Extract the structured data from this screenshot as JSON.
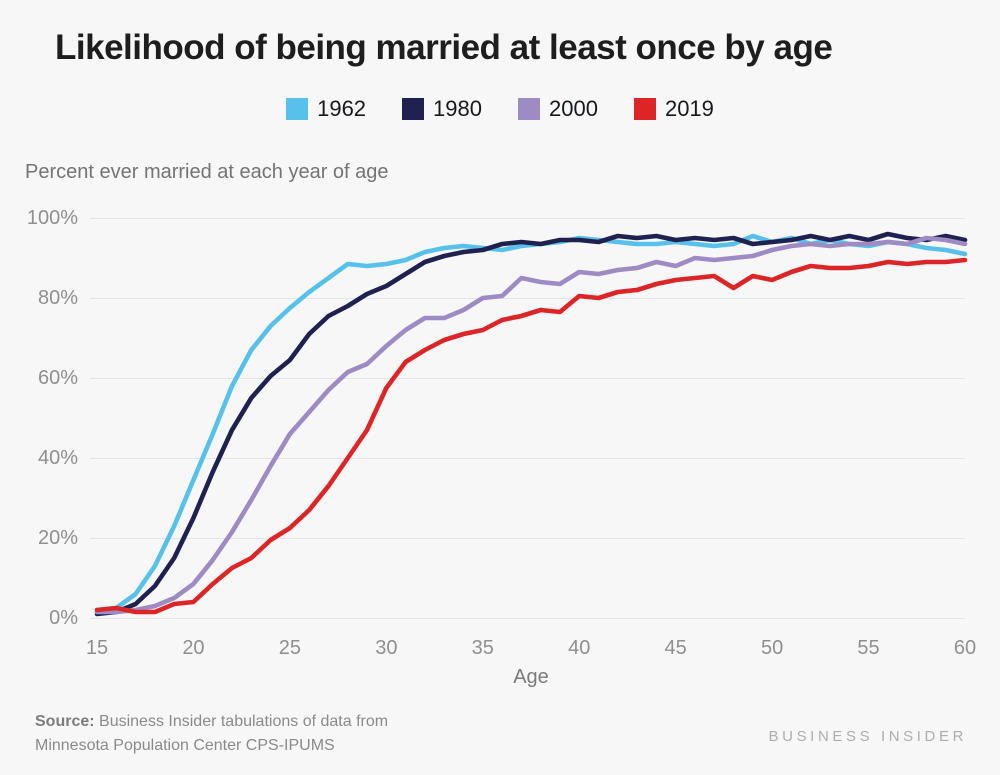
{
  "title": "Likelihood of being married at least once by age",
  "subtitle": "Percent ever married at each year of age",
  "source": {
    "label": "Source:",
    "line1_rest": " Business Insider tabulations of data from",
    "line2": "Minnesota Population Center CPS-IPUMS"
  },
  "branding": "BUSINESS INSIDER",
  "colors": {
    "background": "#f7f7f7",
    "gridline": "#e4e4e4",
    "title_text": "#1e1e1e",
    "muted_text": "#8f8f8f"
  },
  "chart_data": {
    "type": "line",
    "title": "Likelihood of being married at least once by age",
    "subtitle": "Percent ever married at each year of age",
    "xlabel": "Age",
    "ylabel": "Percent ever married",
    "xlim": [
      15,
      60
    ],
    "ylim": [
      0,
      100
    ],
    "grid": true,
    "legend_position": "top",
    "xticks": [
      "15",
      "20",
      "25",
      "30",
      "35",
      "40",
      "45",
      "50",
      "55",
      "60"
    ],
    "yticks": [
      "0%",
      "20%",
      "40%",
      "60%",
      "80%",
      "100%"
    ],
    "x": [
      15,
      16,
      17,
      18,
      19,
      20,
      21,
      22,
      23,
      24,
      25,
      26,
      27,
      28,
      29,
      30,
      31,
      32,
      33,
      34,
      35,
      36,
      37,
      38,
      39,
      40,
      41,
      42,
      43,
      44,
      45,
      46,
      47,
      48,
      49,
      50,
      51,
      52,
      53,
      54,
      55,
      56,
      57,
      58,
      59,
      60
    ],
    "series": [
      {
        "name": "1962",
        "color": "#57C1EB",
        "values": [
          2,
          2.5,
          6,
          13,
          23,
          34.5,
          46,
          58,
          67,
          73,
          77.5,
          81.5,
          85,
          88.5,
          88,
          88.5,
          89.5,
          91.5,
          92.5,
          93,
          92.5,
          92,
          93,
          93.5,
          94,
          95,
          94.5,
          94,
          93.5,
          93.5,
          94,
          93.5,
          93,
          93.5,
          95.5,
          94,
          95,
          93.5,
          94.5,
          93.5,
          93,
          94,
          93.5,
          92.5,
          92,
          91
        ]
      },
      {
        "name": "1980",
        "color": "#1F2251",
        "values": [
          1,
          1.5,
          3.5,
          8,
          15,
          25,
          36.5,
          47,
          55,
          60.5,
          64.5,
          71,
          75.5,
          78,
          81,
          83,
          86,
          89,
          90.5,
          91.5,
          92,
          93.5,
          94,
          93.5,
          94.5,
          94.5,
          94,
          95.5,
          95,
          95.5,
          94.5,
          95,
          94.5,
          95,
          93.5,
          94,
          94.5,
          95.5,
          94.5,
          95.5,
          94.5,
          96,
          95,
          94.5,
          95.5,
          94.5
        ]
      },
      {
        "name": "2000",
        "color": "#9E8BC4",
        "values": [
          1.5,
          1.5,
          2,
          3,
          5,
          8.5,
          14.5,
          21.5,
          29.5,
          38,
          46,
          51.5,
          57,
          61.5,
          63.5,
          68,
          72,
          75,
          75,
          77,
          80,
          80.5,
          85,
          84,
          83.5,
          86.5,
          86,
          87,
          87.5,
          89,
          88,
          90,
          89.5,
          90,
          90.5,
          92,
          93,
          93.5,
          93,
          93.5,
          93.5,
          94,
          93.5,
          95,
          94.5,
          93.5
        ]
      },
      {
        "name": "2019",
        "color": "#DC2527",
        "values": [
          2,
          2.5,
          1.5,
          1.5,
          3.5,
          4,
          8.5,
          12.5,
          15,
          19.5,
          22.5,
          27,
          33,
          40,
          47,
          57.5,
          64,
          67,
          69.5,
          71,
          72,
          74.5,
          75.5,
          77,
          76.5,
          80.5,
          80,
          81.5,
          82,
          83.5,
          84.5,
          85,
          85.5,
          82.5,
          85.5,
          84.5,
          86.5,
          88,
          87.5,
          87.5,
          88,
          89,
          88.5,
          89,
          89,
          89.5
        ]
      }
    ]
  }
}
